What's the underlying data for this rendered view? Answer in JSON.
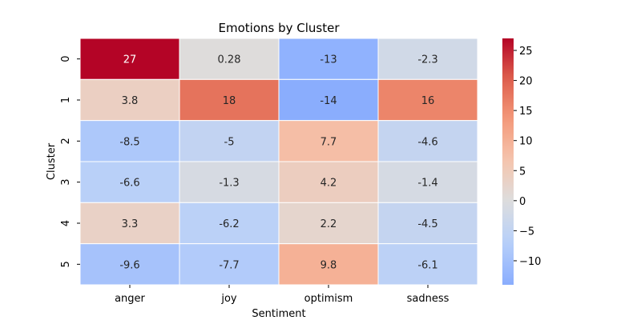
{
  "chart_data": {
    "type": "heatmap",
    "title": "Emotions by Cluster",
    "xlabel": "Sentiment",
    "ylabel": "Cluster",
    "x_categories": [
      "anger",
      "joy",
      "optimism",
      "sadness"
    ],
    "y_categories": [
      "0",
      "1",
      "2",
      "3",
      "4",
      "5"
    ],
    "values": [
      [
        27,
        0.28,
        -13,
        -2.3
      ],
      [
        3.8,
        18,
        -14,
        16
      ],
      [
        -8.5,
        -5,
        7.7,
        -4.6
      ],
      [
        -6.6,
        -1.3,
        4.2,
        -1.4
      ],
      [
        3.3,
        -6.2,
        2.2,
        -4.5
      ],
      [
        -9.6,
        -7.7,
        9.8,
        -6.1
      ]
    ],
    "value_labels": [
      [
        "27",
        "0.28",
        "-13",
        "-2.3"
      ],
      [
        "3.8",
        "18",
        "-14",
        "16"
      ],
      [
        "-8.5",
        "-5",
        "7.7",
        "-4.6"
      ],
      [
        "-6.6",
        "-1.3",
        "4.2",
        "-1.4"
      ],
      [
        "3.3",
        "-6.2",
        "2.2",
        "-4.5"
      ],
      [
        "-9.6",
        "-7.7",
        "9.8",
        "-6.1"
      ]
    ],
    "colormap": "coolwarm",
    "center": 0,
    "vmin": -14,
    "vmax": 27,
    "colorbar": {
      "ticks": [
        25,
        20,
        15,
        10,
        5,
        0,
        -5,
        -10
      ],
      "tick_labels": [
        "25",
        "20",
        "15",
        "10",
        "5",
        "0",
        "−5",
        "−10"
      ],
      "placement": "right"
    },
    "grid": false
  }
}
